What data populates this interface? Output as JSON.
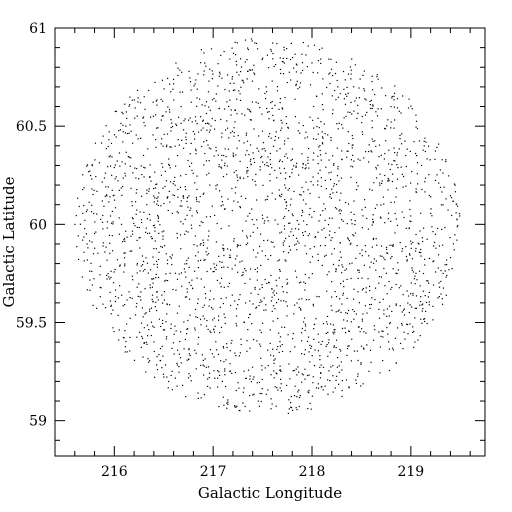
{
  "chart_data": {
    "type": "scatter",
    "title": "",
    "xlabel": "Galactic Longitude",
    "ylabel": "Galactic Latitude",
    "xlim": [
      215.4,
      219.75
    ],
    "ylim": [
      58.82,
      61.0
    ],
    "x_major_ticks": [
      216,
      217,
      218,
      219
    ],
    "x_tick_labels": [
      "216",
      "217",
      "218",
      "219"
    ],
    "y_major_ticks": [
      59,
      59.5,
      60,
      60.5,
      61
    ],
    "y_tick_labels": [
      "59",
      "59.5",
      "60",
      "60.5",
      "61"
    ],
    "grid": false,
    "legend": "none",
    "field": {
      "shape": "circular",
      "center_l": 217.55,
      "center_b": 59.99,
      "radius_b": 0.96,
      "radius_l": 1.95,
      "approx_point_count": 2600
    },
    "colors": {
      "points": "#000000",
      "axes": "#000000",
      "background": "#ffffff"
    }
  }
}
